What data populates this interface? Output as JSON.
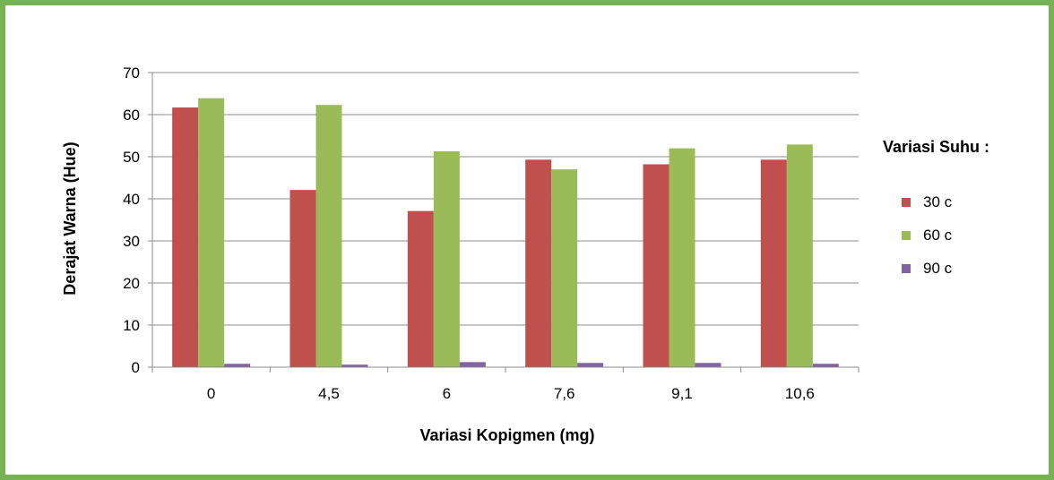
{
  "chart_data": {
    "type": "bar",
    "title": "",
    "xlabel": "Variasi Kopigmen (mg)",
    "ylabel": "Derajat Warna (Hue)",
    "ylim": [
      0,
      70
    ],
    "yticks": [
      "0",
      "10",
      "20",
      "30",
      "40",
      "50",
      "60",
      "70"
    ],
    "categories": [
      "0",
      "4,5",
      "6",
      "7,6",
      "9,1",
      "10,6"
    ],
    "series": [
      {
        "name": "30 c",
        "color": "#c0504d",
        "values": [
          61.7,
          42.1,
          37.1,
          49.3,
          48.2,
          49.3
        ]
      },
      {
        "name": "60 c",
        "color": "#9bbb59",
        "values": [
          63.9,
          62.3,
          51.3,
          47.0,
          52.0,
          52.9
        ]
      },
      {
        "name": "90 c",
        "color": "#8064a2",
        "values": [
          0.8,
          0.6,
          1.2,
          1.0,
          1.0,
          0.8
        ]
      }
    ],
    "grid": true,
    "legend": {
      "title": "Variasi Suhu :",
      "position": "right"
    }
  },
  "frame_color": "#77b255"
}
